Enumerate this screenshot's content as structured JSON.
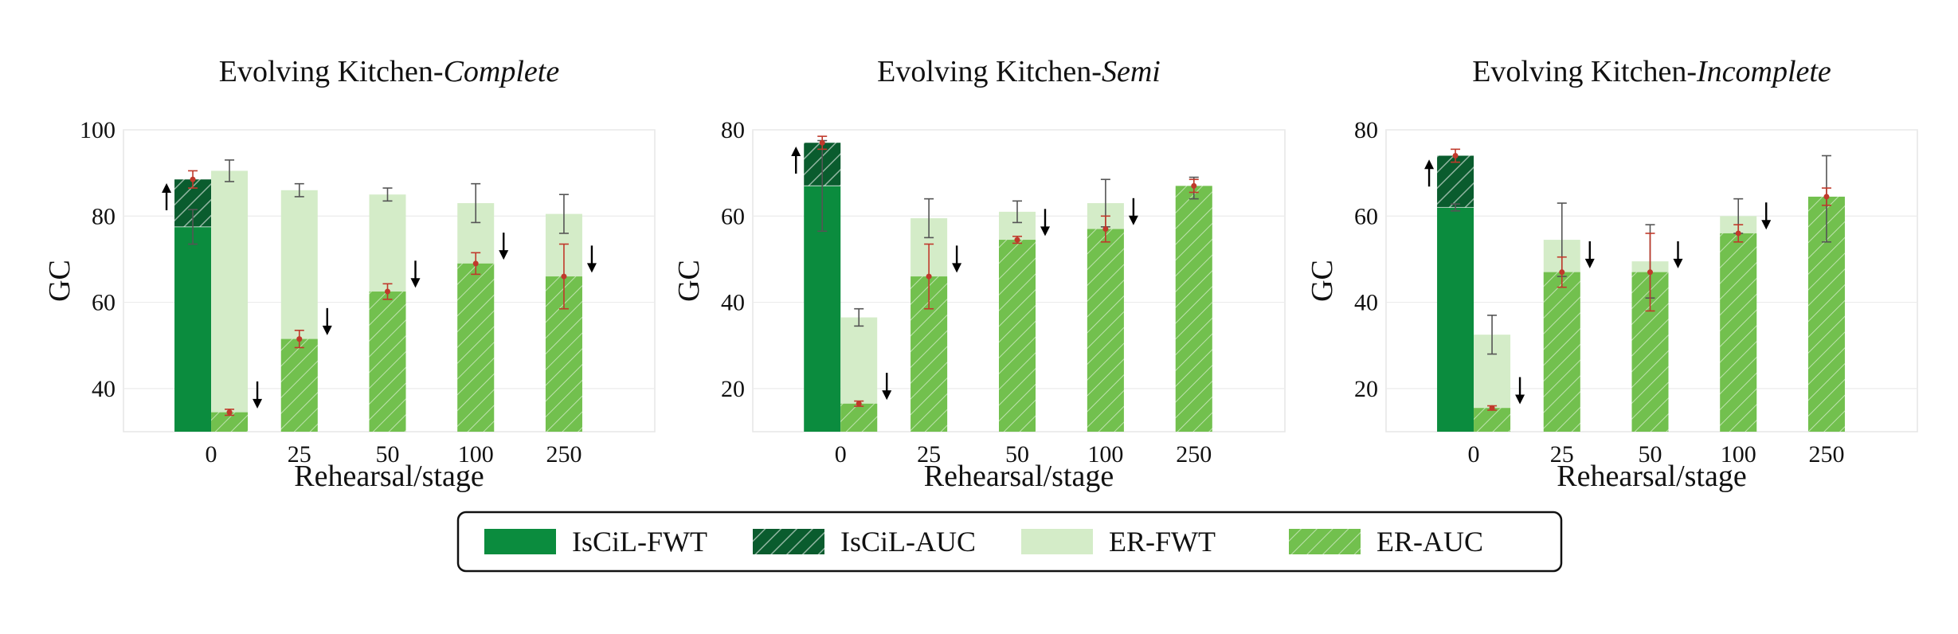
{
  "colors": {
    "isciL_fwt": "#0b8c3e",
    "isciL_auc": "#0a5c2e",
    "er_fwt": "#d4ecc8",
    "er_auc": "#72c04e",
    "error_iscil": "#c0392b",
    "error_gray": "#555555"
  },
  "legend": {
    "placement": "bottom-center",
    "items": [
      {
        "key": "isciL_fwt",
        "label": "IsCiL-FWT"
      },
      {
        "key": "isciL_auc",
        "label": "IsCiL-AUC"
      },
      {
        "key": "er_fwt",
        "label": "ER-FWT"
      },
      {
        "key": "er_auc",
        "label": "ER-AUC"
      }
    ]
  },
  "chart_data": [
    {
      "type": "bar",
      "title_prefix": "Evolving Kitchen-",
      "title_italic": "Complete",
      "xlabel": "Rehearsal/stage",
      "ylabel": "GC",
      "ylim": [
        30,
        100
      ],
      "yticks": [
        40,
        60,
        80,
        100
      ],
      "categories": [
        "0",
        "25",
        "50",
        "100",
        "250"
      ],
      "iscil": {
        "fwt": 77.5,
        "auc": 88.5,
        "auc_err": 2.0,
        "fwt_err": 4.0,
        "arrow": "up"
      },
      "er": {
        "fwt": [
          90.5,
          86.0,
          85.0,
          83.0,
          80.5
        ],
        "fwt_err": [
          2.5,
          1.5,
          1.5,
          4.5,
          4.5
        ],
        "auc": [
          34.5,
          51.5,
          62.5,
          69.0,
          66.0
        ],
        "auc_err": [
          0.7,
          2.0,
          1.8,
          2.5,
          7.5
        ],
        "arrow": [
          "down",
          "down",
          "down",
          "down",
          "down"
        ]
      }
    },
    {
      "type": "bar",
      "title_prefix": "Evolving Kitchen-",
      "title_italic": "Semi",
      "xlabel": "Rehearsal/stage",
      "ylabel": "GC",
      "ylim": [
        10,
        80
      ],
      "yticks": [
        20,
        40,
        60,
        80
      ],
      "categories": [
        "0",
        "25",
        "50",
        "100",
        "250"
      ],
      "iscil": {
        "fwt": 67.0,
        "auc": 77.0,
        "auc_err": 1.5,
        "fwt_err": 10.5,
        "arrow": "up"
      },
      "er": {
        "fwt": [
          36.5,
          59.5,
          61.0,
          63.0,
          66.5
        ],
        "fwt_err": [
          2.0,
          4.5,
          2.5,
          5.5,
          2.5
        ],
        "auc": [
          16.5,
          46.0,
          54.5,
          57.0,
          67.0
        ],
        "auc_err": [
          0.6,
          7.5,
          0.8,
          3.0,
          1.5
        ],
        "arrow": [
          "down",
          "down",
          "down",
          "down",
          "none"
        ]
      }
    },
    {
      "type": "bar",
      "title_prefix": "Evolving Kitchen-",
      "title_italic": "Incomplete",
      "xlabel": "Rehearsal/stage",
      "ylabel": "GC",
      "ylim": [
        10,
        80
      ],
      "yticks": [
        20,
        40,
        60,
        80
      ],
      "categories": [
        "0",
        "25",
        "50",
        "100",
        "250"
      ],
      "iscil": {
        "fwt": 62.0,
        "auc": 74.0,
        "auc_err": 1.5,
        "fwt_err": 0.8,
        "arrow": "up"
      },
      "er": {
        "fwt": [
          32.5,
          54.5,
          49.5,
          60.0,
          64.0
        ],
        "fwt_err": [
          4.5,
          8.5,
          8.5,
          4.0,
          10.0
        ],
        "auc": [
          15.5,
          47.0,
          47.0,
          56.0,
          64.5
        ],
        "auc_err": [
          0.5,
          3.5,
          9.0,
          2.0,
          2.0
        ],
        "arrow": [
          "down",
          "down",
          "down",
          "down",
          "none"
        ]
      }
    }
  ]
}
